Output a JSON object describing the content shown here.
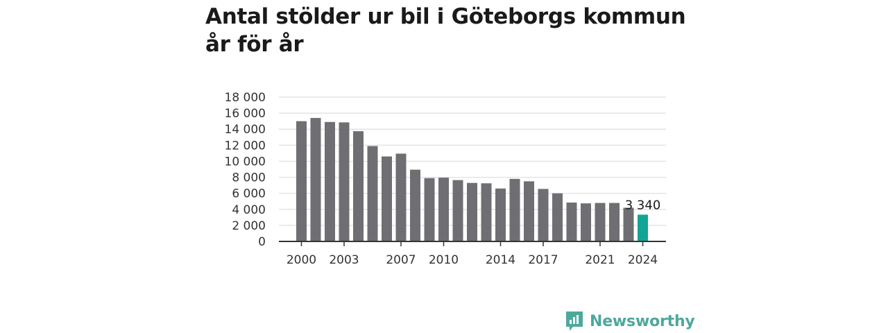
{
  "chart_title": [
    "Antal stölder ur bil i Göteborgs kommun",
    "år för år"
  ],
  "brand": {
    "name": "Newsworthy",
    "icon": "newsworthy-logo-icon"
  },
  "colors": {
    "bar": "#6f6e73",
    "highlight": "#12a597",
    "grid": "#dddddd",
    "axis": "#333333",
    "brand": "#4da89c"
  },
  "chart_data": {
    "type": "bar",
    "categories": [
      "2000",
      "2001",
      "2002",
      "2003",
      "2004",
      "2005",
      "2006",
      "2007",
      "2008",
      "2009",
      "2010",
      "2011",
      "2012",
      "2013",
      "2014",
      "2015",
      "2016",
      "2017",
      "2018",
      "2019",
      "2020",
      "2021",
      "2022",
      "2023",
      "2024"
    ],
    "values": [
      15000,
      15400,
      14900,
      14850,
      13750,
      11900,
      10600,
      10950,
      8950,
      7900,
      7950,
      7650,
      7300,
      7250,
      6600,
      7800,
      7500,
      6550,
      6000,
      4850,
      4750,
      4800,
      4800,
      4200,
      3340
    ],
    "highlight_index": 24,
    "highlight_label": "3 340",
    "x_tick_labels": [
      "2000",
      "2003",
      "2007",
      "2010",
      "2014",
      "2017",
      "2021",
      "2024"
    ],
    "y_ticks": [
      0,
      2000,
      4000,
      6000,
      8000,
      10000,
      12000,
      14000,
      16000,
      18000
    ],
    "y_tick_labels": [
      "0",
      "2 000",
      "4 000",
      "6 000",
      "8 000",
      "10 000",
      "12 000",
      "14 000",
      "16 000",
      "18 000"
    ],
    "ylim": [
      0,
      18000
    ],
    "grid": true,
    "legend": "none",
    "xlabel": "",
    "ylabel": ""
  }
}
